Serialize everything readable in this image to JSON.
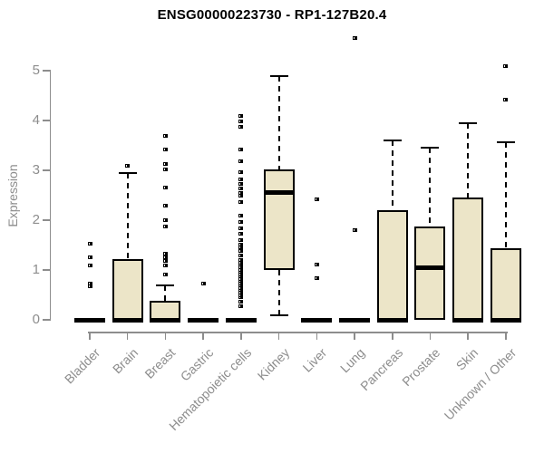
{
  "chart_data": {
    "type": "boxplot",
    "title": "ENSG00000223730 - RP1-127B20.4",
    "xlabel": "",
    "ylabel": "Expression",
    "ylim": [
      0,
      5
    ],
    "yticks": [
      0,
      1,
      2,
      3,
      4,
      5
    ],
    "grid": false,
    "legend": false,
    "categories": [
      "Bladder",
      "Brain",
      "Breast",
      "Gastric",
      "Hematopoietic cells",
      "Kidney",
      "Liver",
      "Lung",
      "Pancreas",
      "Prostate",
      "Skin",
      "Unknown / Other"
    ],
    "series": [
      {
        "name": "Bladder",
        "q1": 0,
        "median": 0,
        "q3": 0,
        "whisker_low": 0,
        "whisker_high": 0,
        "outliers": [
          0.67,
          0.73,
          1.1,
          1.25,
          1.52
        ]
      },
      {
        "name": "Brain",
        "q1": 0,
        "median": 0,
        "q3": 1.22,
        "whisker_low": 0,
        "whisker_high": 2.95,
        "outliers": [
          3.1
        ]
      },
      {
        "name": "Breast",
        "q1": 0,
        "median": 0,
        "q3": 0.38,
        "whisker_low": 0,
        "whisker_high": 0.7,
        "outliers": [
          0.91,
          1.09,
          1.18,
          1.25,
          1.32,
          1.88,
          2.0,
          2.3,
          2.65,
          3.02,
          3.12,
          3.42,
          3.7
        ]
      },
      {
        "name": "Gastric",
        "q1": 0,
        "median": 0,
        "q3": 0,
        "whisker_low": 0,
        "whisker_high": 0,
        "outliers": [
          0.72
        ]
      },
      {
        "name": "Hematopoietic cells",
        "q1": 0,
        "median": 0,
        "q3": 0,
        "whisker_low": 0,
        "whisker_high": 0,
        "outliers": [
          0.27,
          0.36,
          0.45,
          0.5,
          0.55,
          0.6,
          0.64,
          0.69,
          0.73,
          0.78,
          0.82,
          0.87,
          0.91,
          0.96,
          1.0,
          1.05,
          1.11,
          1.15,
          1.2,
          1.29,
          1.38,
          1.45,
          1.51,
          1.6,
          1.73,
          1.84,
          1.96,
          2.09,
          2.36,
          2.5,
          2.55,
          2.64,
          2.73,
          2.82,
          2.96,
          3.18,
          3.42,
          3.87,
          3.98,
          4.09
        ]
      },
      {
        "name": "Kidney",
        "q1": 1.0,
        "median": 2.57,
        "q3": 3.02,
        "whisker_low": 0.1,
        "whisker_high": 4.9,
        "outliers": []
      },
      {
        "name": "Liver",
        "q1": 0,
        "median": 0,
        "q3": 0,
        "whisker_low": 0,
        "whisker_high": 0,
        "outliers": [
          0.84,
          1.11,
          2.42
        ]
      },
      {
        "name": "Lung",
        "q1": 0,
        "median": 0,
        "q3": 0,
        "whisker_low": 0,
        "whisker_high": 0,
        "outliers": [
          1.8,
          5.65
        ]
      },
      {
        "name": "Pancreas",
        "q1": 0,
        "median": 0,
        "q3": 2.2,
        "whisker_low": 0,
        "whisker_high": 3.6,
        "outliers": []
      },
      {
        "name": "Prostate",
        "q1": 0,
        "median": 1.05,
        "q3": 1.88,
        "whisker_low": 0,
        "whisker_high": 3.45,
        "outliers": []
      },
      {
        "name": "Skin",
        "q1": 0,
        "median": 0,
        "q3": 2.45,
        "whisker_low": 0,
        "whisker_high": 3.95,
        "outliers": []
      },
      {
        "name": "Unknown / Other",
        "q1": 0,
        "median": 0,
        "q3": 1.43,
        "whisker_low": 0,
        "whisker_high": 3.57,
        "outliers": [
          4.42,
          5.1
        ]
      }
    ],
    "colors": {
      "box_fill": "#ece5c8",
      "box_border": "#000000",
      "median": "#000000",
      "whisker": "#000000",
      "outlier": "#000000",
      "axis": "#8d8d8d",
      "tick_label": "#8d8d8d",
      "title": "#000000",
      "background": "#ffffff"
    }
  }
}
